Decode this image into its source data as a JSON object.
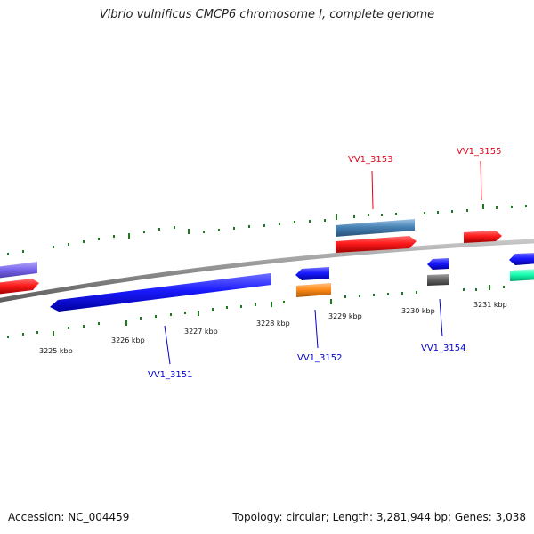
{
  "title": "Vibrio vulnificus CMCP6 chromosome I, complete genome",
  "footer": {
    "accession": "Accession: NC_004459",
    "summary": "Topology: circular; Length: 3,281,944 bp; Genes: 3,038"
  },
  "ticks": [
    "3225 kbp",
    "3226 kbp",
    "3227 kbp",
    "3228 kbp",
    "3229 kbp",
    "3230 kbp",
    "3231 kbp"
  ],
  "gene_labels": [
    {
      "text": "VV1_3153",
      "color": "#e0001b"
    },
    {
      "text": "VV1_3155",
      "color": "#e0001b"
    },
    {
      "text": "VV1_3151",
      "color": "#0000cc"
    },
    {
      "text": "VV1_3152",
      "color": "#0000cc"
    },
    {
      "text": "VV1_3154",
      "color": "#0000cc"
    }
  ],
  "colors": {
    "backbone": "#8c8c8c",
    "tick": "#1f7a1f",
    "forward_gene": "#ff1a1a",
    "reverse_gene": "#1a1aff",
    "rna_gene": "#4682b4",
    "orange_gene": "#ff8c1a",
    "gray_gene": "#666666",
    "purple_gene": "#7b68ee",
    "cyan_gene": "#1affb2"
  }
}
